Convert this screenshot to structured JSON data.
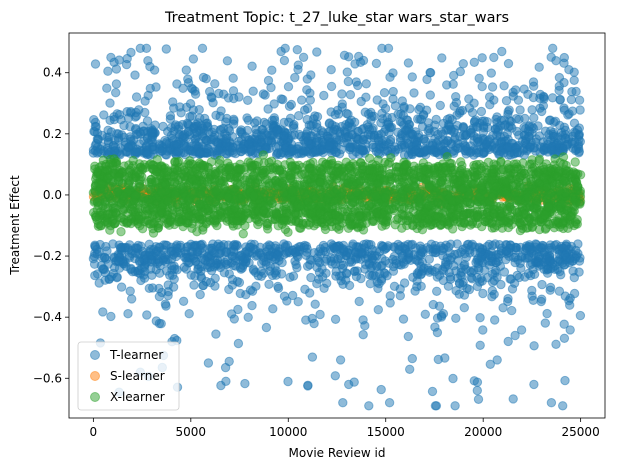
{
  "chart_data": {
    "type": "scatter",
    "title": "Treatment Topic: t_27_luke_star wars_star_wars",
    "xlabel": "Movie Review id",
    "ylabel": "Treatment Effect",
    "xlim": [
      -1250,
      26250
    ],
    "ylim": [
      -0.73,
      0.53
    ],
    "xticks": [
      0,
      5000,
      10000,
      15000,
      20000,
      25000
    ],
    "xtick_labels": [
      "0",
      "5000",
      "10000",
      "15000",
      "20000",
      "25000"
    ],
    "yticks": [
      -0.6,
      -0.4,
      -0.2,
      0.0,
      0.2,
      0.4
    ],
    "ytick_labels": [
      "−0.6",
      "−0.4",
      "−0.2",
      "0.0",
      "0.2",
      "0.4"
    ],
    "grid": false,
    "legend_position": "lower-left",
    "point_count_per_series": 25000,
    "series": [
      {
        "name": "T-learner",
        "color": "#1f77b4",
        "alpha": 0.5,
        "x_range": [
          0,
          25000
        ],
        "y_core_bands": [
          [
            -0.2,
            -0.1
          ],
          [
            0.1,
            0.3
          ]
        ],
        "y_extent": [
          -0.69,
          0.48
        ],
        "sample_points": [
          {
            "x": 900,
            "y": 0.45
          },
          {
            "x": 5600,
            "y": 0.48
          },
          {
            "x": 9800,
            "y": 0.44
          },
          {
            "x": 2900,
            "y": 0.42
          },
          {
            "x": 12200,
            "y": 0.41
          },
          {
            "x": 17300,
            "y": 0.4
          },
          {
            "x": 21300,
            "y": 0.43
          },
          {
            "x": 24400,
            "y": 0.41
          },
          {
            "x": 12800,
            "y": -0.68
          },
          {
            "x": 15200,
            "y": -0.68
          },
          {
            "x": 17600,
            "y": -0.69
          },
          {
            "x": 23500,
            "y": -0.68
          },
          {
            "x": 6800,
            "y": -0.61
          },
          {
            "x": 5900,
            "y": -0.55
          },
          {
            "x": 13100,
            "y": -0.62
          },
          {
            "x": 19700,
            "y": -0.64
          },
          {
            "x": 22600,
            "y": -0.62
          }
        ]
      },
      {
        "name": "S-learner",
        "color": "#ff7f0e",
        "alpha": 0.5,
        "x_range": [
          0,
          25000
        ],
        "y_core_bands": [
          [
            -0.02,
            0.02
          ]
        ],
        "y_extent": [
          -0.03,
          0.03
        ],
        "sample_points": []
      },
      {
        "name": "X-learner",
        "color": "#2ca02c",
        "alpha": 0.5,
        "x_range": [
          0,
          25000
        ],
        "y_core_bands": [
          [
            -0.1,
            0.1
          ]
        ],
        "y_extent": [
          -0.15,
          0.14
        ],
        "sample_points": []
      }
    ]
  }
}
